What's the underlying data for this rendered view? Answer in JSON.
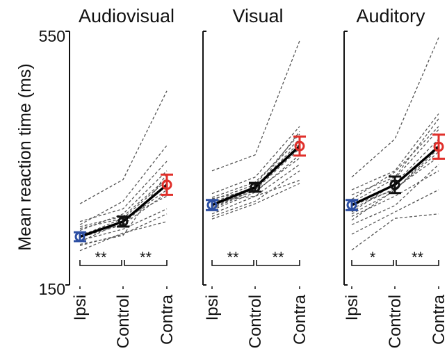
{
  "chart_data": {
    "type": "line",
    "ylabel": "Mean reaction time (ms)",
    "ylim": [
      150,
      550
    ],
    "yticks": [
      "150",
      "550"
    ],
    "categories": [
      "Ipsi",
      "Control",
      "Contra"
    ],
    "colors": {
      "Ipsi": "#2d4fa3",
      "Control": "#111111",
      "Contra": "#e0302b",
      "subjects": "#555555"
    },
    "panels": [
      {
        "title": "Audiovisual",
        "means": [
          226,
          250,
          308
        ],
        "errors": [
          7,
          8,
          16
        ],
        "subjects": [
          [
            230,
            245,
            295
          ],
          [
            220,
            238,
            270
          ],
          [
            236,
            262,
            330
          ],
          [
            212,
            230,
            262
          ],
          [
            242,
            258,
            318
          ],
          [
            204,
            232,
            250
          ],
          [
            250,
            270,
            345
          ],
          [
            225,
            245,
            310
          ],
          [
            218,
            250,
            300
          ],
          [
            245,
            282,
            370
          ],
          [
            278,
            316,
            456
          ],
          [
            214,
            228,
            325
          ],
          [
            227,
            255,
            290
          ],
          [
            239,
            255,
            315
          ]
        ],
        "significance": [
          "**",
          "**"
        ]
      },
      {
        "title": "Visual",
        "means": [
          276,
          304,
          369
        ],
        "errors": [
          8,
          7,
          15
        ],
        "subjects": [
          [
            262,
            290,
            340
          ],
          [
            270,
            300,
            365
          ],
          [
            280,
            305,
            375
          ],
          [
            254,
            278,
            310
          ],
          [
            288,
            312,
            380
          ],
          [
            294,
            320,
            400
          ],
          [
            275,
            298,
            350
          ],
          [
            268,
            296,
            355
          ],
          [
            284,
            308,
            388
          ],
          [
            258,
            282,
            330
          ],
          [
            330,
            355,
            535
          ],
          [
            282,
            290,
            315
          ],
          [
            272,
            302,
            372
          ],
          [
            286,
            300,
            392
          ]
        ],
        "significance": [
          "**",
          "**"
        ]
      },
      {
        "title": "Auditory",
        "means": [
          276,
          308,
          368
        ],
        "errors": [
          8,
          13,
          19
        ],
        "subjects": [
          [
            252,
            300,
            360
          ],
          [
            265,
            310,
            380
          ],
          [
            280,
            318,
            395
          ],
          [
            230,
            265,
            300
          ],
          [
            300,
            330,
            420
          ],
          [
            245,
            275,
            340
          ],
          [
            270,
            302,
            352
          ],
          [
            292,
            320,
            412
          ],
          [
            258,
            290,
            330
          ],
          [
            205,
            255,
            262
          ],
          [
            320,
            380,
            540
          ],
          [
            285,
            328,
            400
          ],
          [
            262,
            298,
            372
          ],
          [
            275,
            300,
            365
          ]
        ],
        "significance": [
          "*",
          "**"
        ]
      }
    ]
  }
}
